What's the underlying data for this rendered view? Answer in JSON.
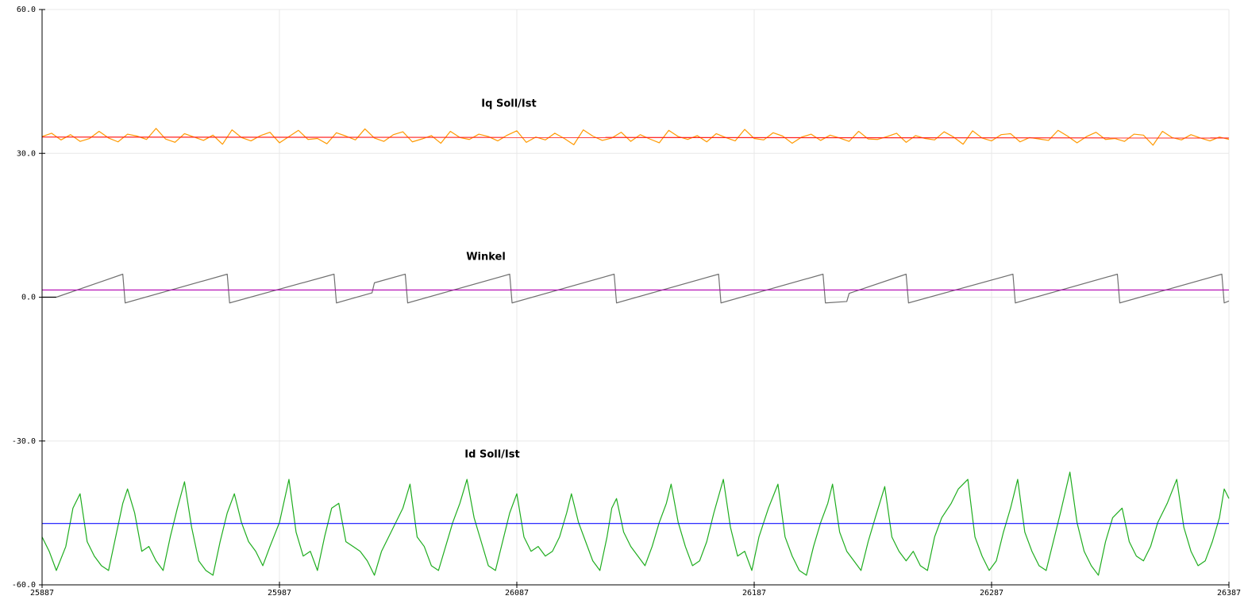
{
  "chart_data": {
    "type": "line",
    "annotations": [
      "Iq Soll/Ist",
      "Winkel",
      "Id Soll/Ist"
    ],
    "xlim": [
      25887,
      26387
    ],
    "xticks": [
      25887,
      25987,
      26087,
      26187,
      26287,
      26387
    ],
    "ylim": [
      -60,
      60
    ],
    "yticks": [
      {
        "value": -60,
        "label": "-60.0"
      },
      {
        "value": -30,
        "label": "-30.0"
      },
      {
        "value": 0,
        "label": "0.0"
      },
      {
        "value": 30,
        "label": "30.0"
      },
      {
        "value": 60,
        "label": "60.0"
      }
    ],
    "grid": true,
    "series": [
      {
        "color": "#ff9900",
        "x": [
          25887,
          25891,
          25895,
          25899,
          25903,
          25907,
          25911,
          25915,
          25919,
          25923,
          25927,
          25931,
          25935,
          25939,
          25943,
          25947,
          25951,
          25955,
          25959,
          25963,
          25967,
          25971,
          25975,
          25979,
          25983,
          25987,
          25991,
          25995,
          25999,
          26003,
          26007,
          26011,
          26015,
          26019,
          26023,
          26027,
          26031,
          26035,
          26039,
          26043,
          26047,
          26051,
          26055,
          26059,
          26063,
          26067,
          26071,
          26075,
          26079,
          26083,
          26087,
          26091,
          26095,
          26099,
          26103,
          26107,
          26111,
          26115,
          26119,
          26123,
          26127,
          26131,
          26135,
          26139,
          26143,
          26147,
          26151,
          26155,
          26159,
          26163,
          26167,
          26171,
          26175,
          26179,
          26183,
          26187,
          26191,
          26195,
          26199,
          26203,
          26207,
          26211,
          26215,
          26219,
          26223,
          26227,
          26231,
          26235,
          26239,
          26243,
          26247,
          26251,
          26255,
          26259,
          26263,
          26267,
          26271,
          26275,
          26279,
          26283,
          26287,
          26291,
          26295,
          26299,
          26303,
          26307,
          26311,
          26315,
          26319,
          26323,
          26327,
          26331,
          26335,
          26339,
          26343,
          26347,
          26351,
          26355,
          26359,
          26363,
          26367,
          26371,
          26375,
          26379,
          26383,
          26387
        ],
        "values": [
          33.5,
          34.2,
          32.8,
          33.9,
          32.5,
          33.1,
          34.6,
          33.2,
          32.4,
          34.0,
          33.6,
          32.9,
          35.2,
          33.0,
          32.3,
          34.1,
          33.4,
          32.7,
          33.8,
          31.9,
          34.9,
          33.3,
          32.6,
          33.7,
          34.4,
          32.2,
          33.5,
          34.8,
          32.9,
          33.1,
          32.0,
          34.3,
          33.6,
          32.8,
          35.1,
          33.2,
          32.5,
          33.9,
          34.5,
          32.4,
          33.0,
          33.7,
          32.1,
          34.6,
          33.3,
          32.9,
          34.0,
          33.5,
          32.6,
          33.8,
          34.7,
          32.3,
          33.4,
          32.8,
          34.2,
          33.1,
          31.8,
          34.9,
          33.6,
          32.7,
          33.2,
          34.4,
          32.5,
          33.9,
          33.0,
          32.2,
          34.8,
          33.5,
          32.9,
          33.7,
          32.4,
          34.1,
          33.3,
          32.6,
          35.0,
          33.1,
          32.8,
          34.3,
          33.6,
          32.1,
          33.4,
          34.0,
          32.7,
          33.8,
          33.2,
          32.5,
          34.6,
          33.0,
          32.9,
          33.5,
          34.2,
          32.3,
          33.7,
          33.1,
          32.8,
          34.5,
          33.4,
          31.9,
          34.7,
          33.2,
          32.6,
          33.9,
          34.1,
          32.4,
          33.3,
          33.0,
          32.7,
          34.8,
          33.6,
          32.2,
          33.5,
          34.4,
          32.9,
          33.1,
          32.5,
          34.0,
          33.8,
          31.7,
          34.6,
          33.3,
          32.8,
          33.9,
          33.2,
          32.6,
          33.4,
          32.9
        ]
      },
      {
        "color": "#ff2020",
        "x": [
          25887,
          26387
        ],
        "values": [
          33.4,
          33.2
        ]
      },
      {
        "color": "#000000",
        "x": [
          25887,
          25893
        ],
        "values": [
          0,
          0
        ]
      },
      {
        "color": "#707070",
        "x": [
          25893,
          25921,
          25922,
          25965,
          25966,
          26010,
          26011,
          26026,
          26027,
          26040,
          26041,
          26084,
          26085,
          26128,
          26129,
          26172,
          26173,
          26216,
          26217,
          26226,
          26227,
          26251,
          26252,
          26296,
          26297,
          26340,
          26341,
          26384,
          26385,
          26387
        ],
        "values": [
          0,
          4.8,
          -1.2,
          4.8,
          -1.2,
          4.8,
          -1.2,
          0.9,
          3.0,
          4.8,
          -1.2,
          4.8,
          -1.2,
          4.8,
          -1.2,
          4.8,
          -1.2,
          4.8,
          -1.2,
          -0.9,
          0.8,
          4.8,
          -1.2,
          4.8,
          -1.2,
          4.8,
          -1.2,
          4.8,
          -1.2,
          -0.8
        ]
      },
      {
        "color": "#b000b0",
        "x": [
          25887,
          26387
        ],
        "values": [
          1.5,
          1.5
        ]
      },
      {
        "color": "#1fad1f",
        "x": [
          25887,
          25890,
          25893,
          25897,
          25900,
          25903,
          25906,
          25909,
          25912,
          25915,
          25918,
          25921,
          25923,
          25926,
          25929,
          25932,
          25935,
          25938,
          25941,
          25944,
          25947,
          25950,
          25953,
          25956,
          25959,
          25962,
          25965,
          25968,
          25971,
          25974,
          25977,
          25980,
          25983,
          25987,
          25991,
          25994,
          25997,
          26000,
          26003,
          26006,
          26009,
          26012,
          26015,
          26018,
          26021,
          26024,
          26027,
          26030,
          26033,
          26036,
          26039,
          26042,
          26045,
          26048,
          26051,
          26054,
          26057,
          26060,
          26063,
          26066,
          26069,
          26072,
          26075,
          26078,
          26081,
          26084,
          26087,
          26090,
          26093,
          26096,
          26099,
          26102,
          26105,
          26108,
          26110,
          26113,
          26116,
          26119,
          26122,
          26125,
          26127,
          26129,
          26132,
          26135,
          26138,
          26141,
          26144,
          26147,
          26150,
          26152,
          26155,
          26158,
          26161,
          26164,
          26167,
          26170,
          26174,
          26177,
          26180,
          26183,
          26186,
          26189,
          26193,
          26197,
          26200,
          26203,
          26206,
          26209,
          26212,
          26215,
          26218,
          26220,
          26223,
          26226,
          26229,
          26232,
          26235,
          26238,
          26242,
          26245,
          26248,
          26251,
          26254,
          26257,
          26260,
          26263,
          26266,
          26270,
          26273,
          26277,
          26280,
          26283,
          26286,
          26289,
          26292,
          26295,
          26298,
          26301,
          26304,
          26307,
          26310,
          26313,
          26316,
          26320,
          26323,
          26326,
          26329,
          26332,
          26335,
          26338,
          26342,
          26345,
          26348,
          26351,
          26354,
          26357,
          26361,
          26365,
          26368,
          26371,
          26374,
          26377,
          26380,
          26383,
          26385,
          26387
        ],
        "values": [
          -50,
          -53,
          -57,
          -52,
          -44,
          -41,
          -51,
          -54,
          -56,
          -57,
          -50,
          -43,
          -40,
          -45,
          -53,
          -52,
          -55,
          -57,
          -50,
          -44,
          -38.5,
          -48,
          -55,
          -57,
          -58,
          -51,
          -45,
          -41,
          -47,
          -51,
          -53,
          -56,
          -52,
          -47,
          -38,
          -49,
          -54,
          -53,
          -57,
          -50,
          -44,
          -43,
          -51,
          -52,
          -53,
          -55,
          -58,
          -53,
          -50,
          -47,
          -44,
          -39,
          -50,
          -52,
          -56,
          -57,
          -52,
          -47,
          -43,
          -38,
          -46,
          -51,
          -56,
          -57,
          -51,
          -45,
          -41,
          -50,
          -53,
          -52,
          -54,
          -53,
          -50,
          -45,
          -41,
          -47,
          -51,
          -55,
          -57,
          -50,
          -44,
          -42,
          -49,
          -52,
          -54,
          -56,
          -52,
          -47,
          -43,
          -39,
          -47,
          -52,
          -56,
          -55,
          -51,
          -45,
          -38,
          -48,
          -54,
          -53,
          -57,
          -50,
          -44,
          -39,
          -50,
          -54,
          -57,
          -58,
          -52,
          -47,
          -43,
          -39,
          -49,
          -53,
          -55,
          -57,
          -51,
          -46,
          -39.5,
          -50,
          -53,
          -55,
          -53,
          -56,
          -57,
          -50,
          -46,
          -43,
          -40,
          -38,
          -50,
          -54,
          -57,
          -55,
          -49,
          -44,
          -38,
          -49,
          -53,
          -56,
          -57,
          -51,
          -45,
          -36.5,
          -47,
          -53,
          -56,
          -58,
          -51,
          -46,
          -44,
          -51,
          -54,
          -55,
          -52,
          -47,
          -43,
          -38,
          -48,
          -53,
          -56,
          -55,
          -51,
          -46,
          -40,
          -42
        ]
      },
      {
        "color": "#1010ff",
        "x": [
          25887,
          26387
        ],
        "values": [
          -47.2,
          -47.2
        ]
      }
    ]
  }
}
